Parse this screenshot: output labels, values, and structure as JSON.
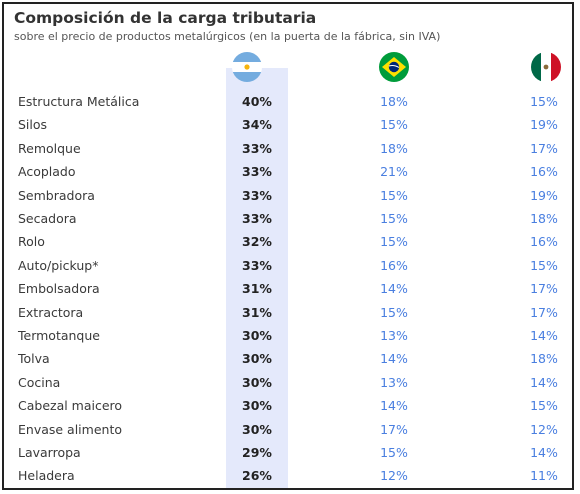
{
  "title": "Composición de la carga tributaria",
  "subtitle": "sobre el precio de  productos metalúrgicos (en la puerta de la fábrica, sin IVA)",
  "colors": {
    "highlight_column": "#e4e9fb",
    "value_blue": "#4a7fe0",
    "highlight_value": "#222222"
  },
  "chart_data": {
    "type": "table",
    "title": "Composición de la carga tributaria",
    "subtitle": "sobre el precio de  productos metalúrgicos (en la puerta de la fábrica, sin IVA)",
    "columns": [
      {
        "icon": "argentina-flag-icon"
      },
      {
        "icon": "brazil-flag-icon"
      },
      {
        "icon": "mexico-flag-icon"
      }
    ],
    "rows": [
      {
        "label": "Estructura Metálica",
        "ar": "40%",
        "br": "18%",
        "mx": "15%"
      },
      {
        "label": "Silos",
        "ar": "34%",
        "br": "15%",
        "mx": "19%"
      },
      {
        "label": "Remolque",
        "ar": "33%",
        "br": "18%",
        "mx": "17%"
      },
      {
        "label": "Acoplado",
        "ar": "33%",
        "br": "21%",
        "mx": "16%"
      },
      {
        "label": "Sembradora",
        "ar": "33%",
        "br": "15%",
        "mx": "19%"
      },
      {
        "label": "Secadora",
        "ar": "33%",
        "br": "15%",
        "mx": "18%"
      },
      {
        "label": "Rolo",
        "ar": "32%",
        "br": "15%",
        "mx": "16%"
      },
      {
        "label": "Auto/pickup*",
        "ar": "33%",
        "br": "16%",
        "mx": "15%"
      },
      {
        "label": "Embolsadora",
        "ar": "31%",
        "br": "14%",
        "mx": "17%"
      },
      {
        "label": "Extractora",
        "ar": "31%",
        "br": "15%",
        "mx": "17%"
      },
      {
        "label": "Termotanque",
        "ar": "30%",
        "br": "13%",
        "mx": "14%"
      },
      {
        "label": "Tolva",
        "ar": "30%",
        "br": "14%",
        "mx": "18%"
      },
      {
        "label": "Cocina",
        "ar": "30%",
        "br": "13%",
        "mx": "14%"
      },
      {
        "label": "Cabezal maicero",
        "ar": "30%",
        "br": "14%",
        "mx": "15%"
      },
      {
        "label": "Envase alimento",
        "ar": "30%",
        "br": "17%",
        "mx": "12%"
      },
      {
        "label": "Lavarropa",
        "ar": "29%",
        "br": "15%",
        "mx": "14%"
      },
      {
        "label": "Heladera",
        "ar": "26%",
        "br": "12%",
        "mx": "11%"
      }
    ]
  }
}
